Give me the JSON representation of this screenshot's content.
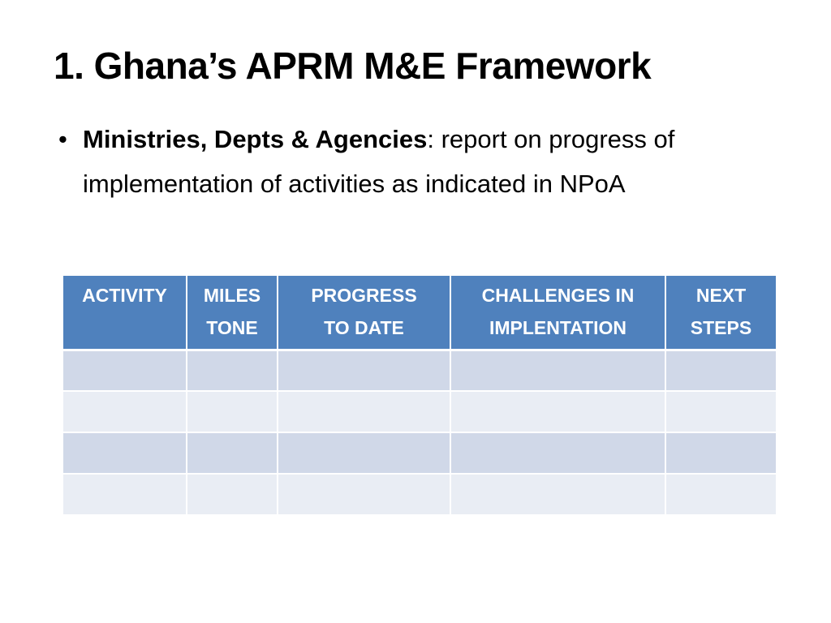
{
  "slide": {
    "title": "1. Ghana’s APRM M&E Framework",
    "bullet": {
      "marker": "•",
      "bold_text": "Ministries, Depts & Agencies",
      "rest_text": ": report on progress of implementation of activities as indicated in NPoA"
    }
  },
  "table": {
    "headers": [
      {
        "line1": "ACTIVITY",
        "line2": ""
      },
      {
        "line1": "MILES",
        "line2": "TONE"
      },
      {
        "line1": "PROGRESS",
        "line2": "TO DATE"
      },
      {
        "line1": "CHALLENGES IN",
        "line2": "IMPLENTATION"
      },
      {
        "line1": "NEXT",
        "line2": "STEPS"
      }
    ],
    "rows": [
      [
        "",
        "",
        "",
        "",
        ""
      ],
      [
        "",
        "",
        "",
        "",
        ""
      ],
      [
        "",
        "",
        "",
        "",
        ""
      ],
      [
        "",
        "",
        "",
        "",
        ""
      ]
    ],
    "colors": {
      "header_bg": "#4f81bd",
      "row_odd_bg": "#d0d8e8",
      "row_even_bg": "#e9edf4"
    }
  }
}
